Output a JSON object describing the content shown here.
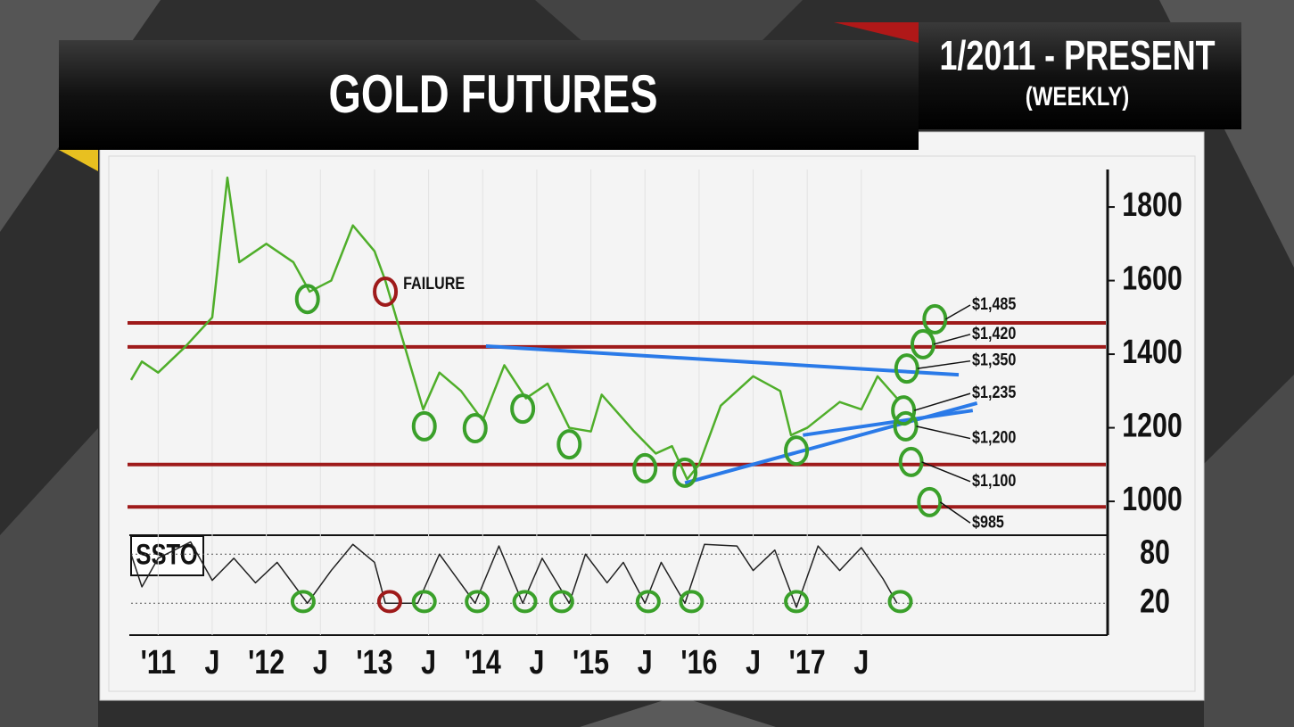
{
  "header": {
    "title": "GOLD FUTURES",
    "range": "1/2011 - PRESENT",
    "interval": "(WEEKLY)"
  },
  "chart_data": [
    {
      "type": "line",
      "color": "#4fae2a",
      "x": [
        2010.75,
        2010.85,
        2011.0,
        2011.25,
        2011.5,
        2011.64,
        2011.75,
        2012.0,
        2012.25,
        2012.4,
        2012.6,
        2012.8,
        2013.0,
        2013.1,
        2013.25,
        2013.45,
        2013.6,
        2013.8,
        2014.0,
        2014.2,
        2014.4,
        2014.6,
        2014.8,
        2015.0,
        2015.1,
        2015.4,
        2015.6,
        2015.75,
        2015.89,
        2016.0,
        2016.2,
        2016.5,
        2016.75,
        2016.85,
        2017.0,
        2017.3,
        2017.5,
        2017.65,
        2017.83
      ],
      "values": [
        1330,
        1380,
        1350,
        1420,
        1500,
        1880,
        1650,
        1700,
        1650,
        1570,
        1600,
        1750,
        1680,
        1600,
        1450,
        1250,
        1350,
        1300,
        1220,
        1370,
        1280,
        1320,
        1200,
        1190,
        1290,
        1190,
        1130,
        1150,
        1060,
        1100,
        1260,
        1340,
        1300,
        1180,
        1200,
        1270,
        1250,
        1340,
        1280
      ],
      "xlim": [
        2010.75,
        2019.76
      ],
      "ylim": [
        908,
        1902
      ],
      "yticks": [
        1000,
        1200,
        1400,
        1600,
        1800
      ],
      "horizontal_lines": [
        1485,
        1420,
        1100,
        985
      ],
      "line_color": "#9e1a1a",
      "trendlines": [
        {
          "x": [
            2014.03,
            2018.4
          ],
          "values": [
            1422,
            1344
          ]
        },
        {
          "x": [
            2015.87,
            2018.57
          ],
          "values": [
            1050,
            1267
          ]
        },
        {
          "x": [
            2016.96,
            2018.53
          ],
          "values": [
            1180,
            1247
          ]
        }
      ],
      "trendline_color": "#2a7ae8",
      "level_labels": [
        {
          "value": 1485,
          "label": "$1,485"
        },
        {
          "value": 1420,
          "label": "$1,420"
        },
        {
          "value": 1350,
          "label": "$1,350"
        },
        {
          "value": 1235,
          "label": "$1,235"
        },
        {
          "value": 1200,
          "label": "$1,200"
        },
        {
          "value": 1100,
          "label": "$1,100"
        },
        {
          "value": 985,
          "label": "$985"
        }
      ],
      "annotations": [
        {
          "text": "FAILURE",
          "x": 2013.1,
          "y": 1570
        }
      ],
      "circles": [
        {
          "x": 2012.38,
          "y": 1550,
          "color": "#3aa02a"
        },
        {
          "x": 2013.1,
          "y": 1570,
          "color": "#9e1a1a"
        },
        {
          "x": 2013.46,
          "y": 1204,
          "color": "#3aa02a"
        },
        {
          "x": 2013.93,
          "y": 1199,
          "color": "#3aa02a"
        },
        {
          "x": 2014.37,
          "y": 1252,
          "color": "#3aa02a"
        },
        {
          "x": 2014.8,
          "y": 1155,
          "color": "#3aa02a"
        },
        {
          "x": 2015.5,
          "y": 1090,
          "color": "#3aa02a"
        },
        {
          "x": 2015.87,
          "y": 1078,
          "color": "#3aa02a"
        },
        {
          "x": 2016.9,
          "y": 1138,
          "color": "#3aa02a"
        },
        {
          "x": 2017.89,
          "y": 1247,
          "color": "#3aa02a"
        },
        {
          "x": 2017.91,
          "y": 1204,
          "color": "#3aa02a"
        },
        {
          "x": 2017.96,
          "y": 1107,
          "color": "#3aa02a"
        },
        {
          "x": 2018.13,
          "y": 998,
          "color": "#3aa02a"
        },
        {
          "x": 2017.92,
          "y": 1361,
          "color": "#3aa02a"
        },
        {
          "x": 2018.07,
          "y": 1427,
          "color": "#3aa02a"
        },
        {
          "x": 2018.18,
          "y": 1495,
          "color": "#3aa02a"
        }
      ]
    },
    {
      "type": "line",
      "title": "SSTO",
      "color": "#222222",
      "x": [
        2010.75,
        2010.85,
        2011.0,
        2011.3,
        2011.5,
        2011.7,
        2011.9,
        2012.1,
        2012.38,
        2012.6,
        2012.8,
        2013.0,
        2013.1,
        2013.4,
        2013.6,
        2013.93,
        2014.15,
        2014.37,
        2014.55,
        2014.8,
        2014.95,
        2015.15,
        2015.3,
        2015.5,
        2015.65,
        2015.87,
        2016.05,
        2016.35,
        2016.5,
        2016.7,
        2016.9,
        2017.1,
        2017.3,
        2017.5,
        2017.7,
        2017.83
      ],
      "values": [
        80,
        40,
        75,
        95,
        48,
        75,
        45,
        70,
        20,
        60,
        92,
        70,
        20,
        20,
        80,
        20,
        90,
        20,
        75,
        20,
        80,
        45,
        70,
        20,
        70,
        20,
        92,
        90,
        60,
        85,
        15,
        90,
        60,
        88,
        50,
        20
      ],
      "xlim": [
        2010.75,
        2019.76
      ],
      "ylim": [
        -19,
        101
      ],
      "yticks": [
        20,
        80
      ],
      "xticks": [
        {
          "value": 2011,
          "label": "'11"
        },
        {
          "value": 2011.5,
          "label": "J"
        },
        {
          "value": 2012,
          "label": "'12"
        },
        {
          "value": 2012.5,
          "label": "J"
        },
        {
          "value": 2013,
          "label": "'13"
        },
        {
          "value": 2013.5,
          "label": "J"
        },
        {
          "value": 2014,
          "label": "'14"
        },
        {
          "value": 2014.5,
          "label": "J"
        },
        {
          "value": 2015,
          "label": "'15"
        },
        {
          "value": 2015.5,
          "label": "J"
        },
        {
          "value": 2016,
          "label": "'16"
        },
        {
          "value": 2016.5,
          "label": "J"
        },
        {
          "value": 2017,
          "label": "'17"
        },
        {
          "value": 2017.5,
          "label": "J"
        }
      ],
      "circles": [
        {
          "x": 2012.34,
          "y": 22,
          "color": "#3aa02a"
        },
        {
          "x": 2013.14,
          "y": 22,
          "color": "#9e1a1a"
        },
        {
          "x": 2013.46,
          "y": 22,
          "color": "#3aa02a"
        },
        {
          "x": 2013.95,
          "y": 22,
          "color": "#3aa02a"
        },
        {
          "x": 2014.39,
          "y": 22,
          "color": "#3aa02a"
        },
        {
          "x": 2014.73,
          "y": 22,
          "color": "#3aa02a"
        },
        {
          "x": 2015.53,
          "y": 22,
          "color": "#3aa02a"
        },
        {
          "x": 2015.93,
          "y": 22,
          "color": "#3aa02a"
        },
        {
          "x": 2016.9,
          "y": 22,
          "color": "#3aa02a"
        },
        {
          "x": 2017.86,
          "y": 22,
          "color": "#3aa02a"
        }
      ]
    }
  ]
}
